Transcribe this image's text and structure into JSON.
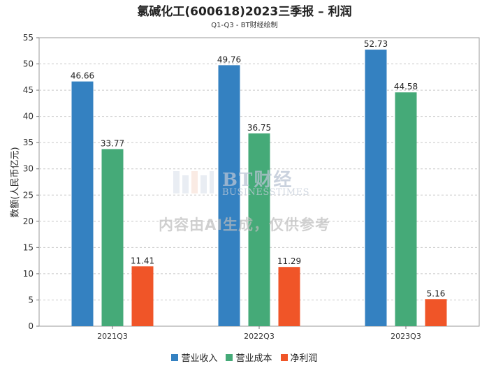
{
  "chart_data": {
    "type": "bar",
    "title": "氯碱化工(600618)2023三季报 – 利润",
    "subtitle": "Q1-Q3 - BT财经绘制",
    "xlabel": "",
    "ylabel": "数额(人民币亿元)",
    "ylim": [
      0,
      55
    ],
    "yticks": [
      0,
      5,
      10,
      15,
      20,
      25,
      30,
      35,
      40,
      45,
      50,
      55
    ],
    "grid": true,
    "legend_position": "bottom",
    "categories": [
      "2021Q3",
      "2022Q3",
      "2023Q3"
    ],
    "series": [
      {
        "name": "营业收入",
        "color": "#3481c1",
        "values": [
          46.66,
          49.76,
          52.73
        ],
        "labels": [
          "46.66",
          "49.76",
          "52.73"
        ]
      },
      {
        "name": "营业成本",
        "color": "#45aa78",
        "values": [
          33.77,
          36.75,
          44.58
        ],
        "labels": [
          "33.77",
          "36.75",
          "44.58"
        ]
      },
      {
        "name": "净利润",
        "color": "#f05528",
        "values": [
          11.41,
          11.29,
          5.16
        ],
        "labels": [
          "11.41",
          "11.29",
          "5.16"
        ]
      }
    ]
  },
  "watermark": {
    "brand": "BT财经",
    "brand_sub": "BUSINESSTIMES",
    "notice": "内容由AI生成，仅供参考"
  }
}
